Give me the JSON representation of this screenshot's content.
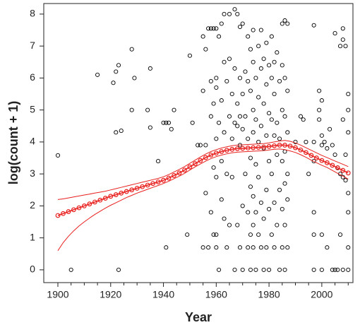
{
  "chart_data": {
    "type": "scatter",
    "x_label": "Year",
    "y_label": "log(count + 1)",
    "xlim": [
      1894.65,
      2011.8
    ],
    "ylim": [
      -0.4,
      8.33
    ],
    "xticks": [
      1900,
      1920,
      1940,
      1960,
      1980,
      2000
    ],
    "xminorticks": [
      1905,
      1910,
      1915,
      1925,
      1930,
      1935,
      1945,
      1950,
      1955,
      1965,
      1970,
      1975,
      1985,
      1990,
      1995,
      2005,
      2010
    ],
    "yticks": [
      0,
      1,
      2,
      3,
      4,
      5,
      6,
      7,
      8
    ],
    "points": {
      "color": "#000000",
      "x": [
        1900,
        1905,
        1915,
        1921,
        1922,
        1923,
        1922,
        1924,
        1923,
        1928,
        1929,
        1928,
        1935,
        1934,
        1935,
        1938,
        1940,
        1941,
        1942,
        1943,
        1944,
        1941,
        1949,
        1950,
        1951,
        1953,
        1954,
        1955,
        1955,
        1956,
        1957,
        1956,
        1956,
        1957,
        1955,
        1958,
        1958,
        1958,
        1958,
        1959,
        1959,
        1959,
        1959,
        1960,
        1960,
        1960,
        1960,
        1960,
        1960,
        1960,
        1961,
        1961,
        1961,
        1962,
        1962,
        1962,
        1962,
        1963,
        1963,
        1963,
        1963,
        1964,
        1964,
        1964,
        1965,
        1965,
        1965,
        1965,
        1966,
        1966,
        1966,
        1967,
        1967,
        1967,
        1967,
        1968,
        1968,
        1968,
        1968,
        1969,
        1969,
        1969,
        1969,
        1969,
        1970,
        1970,
        1970,
        1970,
        1970,
        1971,
        1971,
        1971,
        1972,
        1972,
        1972,
        1972,
        1972,
        1973,
        1973,
        1973,
        1973,
        1973,
        1973,
        1974,
        1974,
        1974,
        1974,
        1974,
        1974,
        1974,
        1975,
        1975,
        1975,
        1975,
        1975,
        1976,
        1976,
        1976,
        1976,
        1976,
        1977,
        1977,
        1977,
        1977,
        1977,
        1978,
        1978,
        1978,
        1978,
        1978,
        1979,
        1979,
        1979,
        1979,
        1979,
        1980,
        1980,
        1980,
        1980,
        1980,
        1981,
        1981,
        1981,
        1981,
        1981,
        1982,
        1982,
        1982,
        1982,
        1982,
        1983,
        1983,
        1983,
        1983,
        1984,
        1984,
        1984,
        1984,
        1985,
        1985,
        1985,
        1985,
        1985,
        1985,
        1986,
        1986,
        1986,
        1986,
        1986,
        1986,
        1986,
        1987,
        1987,
        1987,
        1987,
        1987,
        1987,
        1990,
        1992,
        1993,
        1994,
        1995,
        1997,
        1997,
        1997,
        1997,
        1997,
        1997,
        1999,
        1999,
        1999,
        2000,
        2000,
        2000,
        2000,
        2000,
        2001,
        2002,
        2002,
        2003,
        2004,
        2004,
        2005,
        2005,
        2005,
        2006,
        2006,
        2007,
        2007,
        2007,
        2008,
        2008,
        2008,
        2008,
        2008,
        2009,
        2009,
        2009,
        2010,
        2010,
        2010,
        2010,
        2010,
        2010,
        2010
      ],
      "y": [
        3.58,
        0,
        6.1,
        5.85,
        6.2,
        6.4,
        4.3,
        4.35,
        0,
        6.9,
        6.0,
        5.0,
        6.3,
        5.0,
        4.45,
        3.4,
        4.6,
        4.6,
        4.6,
        4.4,
        5.0,
        0.7,
        1.1,
        6.7,
        4.6,
        3.9,
        3.9,
        7.3,
        5.6,
        6.9,
        7.55,
        3.9,
        2.4,
        0.7,
        0.7,
        7.55,
        5.9,
        4.8,
        1.8,
        7.55,
        5.2,
        3.2,
        1.1,
        7.55,
        6.0,
        5.7,
        4.1,
        2.9,
        1.1,
        0.7,
        7.3,
        4.6,
        0,
        7.7,
        5.3,
        3.4,
        2.2,
        8.0,
        6.5,
        4.3,
        1.6,
        5.9,
        3.0,
        0.7,
        8.0,
        6.6,
        4.8,
        1.4,
        5.5,
        4.1,
        2.9,
        8.15,
        6.3,
        4.6,
        0,
        8.0,
        5.2,
        4.5,
        1.4,
        7.6,
        6.0,
        4.8,
        3.9,
        0.7,
        7.7,
        5.5,
        4.4,
        2.0,
        0,
        6.2,
        4.8,
        3.0,
        7.3,
        5.9,
        4.1,
        1.8,
        0.7,
        6.9,
        5.6,
        3.5,
        2.6,
        1.1,
        0,
        7.5,
        6.5,
        5.0,
        4.3,
        2.3,
        1.4,
        0.7,
        6.0,
        4.7,
        3.3,
        1.8,
        0,
        7.0,
        5.4,
        4.0,
        2.9,
        1.1,
        7.5,
        6.3,
        4.5,
        2.1,
        0.7,
        6.6,
        5.2,
        3.8,
        1.6,
        0,
        7.1,
        5.8,
        4.2,
        2.5,
        0.7,
        6.4,
        4.9,
        3.4,
        1.9,
        0,
        7.3,
        6.0,
        4.7,
        3.0,
        1.1,
        6.5,
        5.5,
        4.2,
        2.1,
        0.7,
        6.8,
        4.6,
        3.6,
        1.4,
        5.9,
        4.1,
        2.5,
        0,
        7.7,
        6.4,
        5.0,
        3.4,
        1.9,
        0.7,
        7.8,
        6.0,
        4.8,
        3.7,
        2.7,
        1.4,
        0,
        7.7,
        5.6,
        4.3,
        3.0,
        2.2,
        0.7,
        4.0,
        4.8,
        4.7,
        4.0,
        3.0,
        7.65,
        4.0,
        3.4,
        1.8,
        1.1,
        0,
        5.6,
        5.0,
        4.7,
        5.3,
        4.2,
        3.9,
        1.1,
        0,
        4.0,
        3.8,
        0.7,
        4.4,
        3.9,
        0,
        7.4,
        3.6,
        0,
        3.2,
        0,
        7.0,
        3.0,
        1.1,
        7.55,
        7.2,
        4.7,
        2.9,
        0,
        7.0,
        3.6,
        2.8,
        5.5,
        5.0,
        4.3,
        2.4,
        1.8,
        0.7,
        0
      ]
    },
    "fit": {
      "color": "#e8201e",
      "x": [
        1900,
        1902,
        1904,
        1906,
        1908,
        1910,
        1912,
        1914,
        1916,
        1918,
        1920,
        1922,
        1924,
        1926,
        1928,
        1930,
        1932,
        1934,
        1936,
        1938,
        1940,
        1942,
        1944,
        1946,
        1948,
        1950,
        1952,
        1954,
        1956,
        1958,
        1960,
        1962,
        1964,
        1966,
        1968,
        1970,
        1972,
        1974,
        1976,
        1978,
        1980,
        1982,
        1984,
        1986,
        1988,
        1990,
        1992,
        1994,
        1996,
        1998,
        2000,
        2002,
        2004,
        2006,
        2008,
        2010
      ],
      "y": [
        1.7,
        1.76,
        1.82,
        1.88,
        1.94,
        2.0,
        2.06,
        2.12,
        2.18,
        2.24,
        2.3,
        2.35,
        2.4,
        2.45,
        2.5,
        2.55,
        2.6,
        2.65,
        2.7,
        2.75,
        2.8,
        2.87,
        2.95,
        3.03,
        3.12,
        3.22,
        3.32,
        3.42,
        3.51,
        3.59,
        3.65,
        3.7,
        3.74,
        3.77,
        3.79,
        3.8,
        3.81,
        3.82,
        3.83,
        3.84,
        3.86,
        3.88,
        3.9,
        3.9,
        3.87,
        3.82,
        3.75,
        3.67,
        3.58,
        3.5,
        3.42,
        3.35,
        3.27,
        3.19,
        3.11,
        3.03
      ],
      "upper": [
        2.2,
        2.22,
        2.25,
        2.28,
        2.31,
        2.34,
        2.37,
        2.4,
        2.43,
        2.46,
        2.5,
        2.54,
        2.58,
        2.62,
        2.66,
        2.7,
        2.74,
        2.78,
        2.82,
        2.86,
        2.91,
        2.98,
        3.06,
        3.14,
        3.23,
        3.33,
        3.43,
        3.53,
        3.62,
        3.7,
        3.76,
        3.81,
        3.85,
        3.88,
        3.9,
        3.91,
        3.92,
        3.93,
        3.94,
        3.95,
        3.97,
        4.0,
        4.03,
        4.05,
        4.02,
        3.97,
        3.9,
        3.82,
        3.74,
        3.66,
        3.58,
        3.51,
        3.44,
        3.37,
        3.3,
        3.23
      ],
      "lower": [
        0.6,
        0.85,
        1.05,
        1.22,
        1.37,
        1.5,
        1.62,
        1.73,
        1.83,
        1.93,
        2.02,
        2.1,
        2.18,
        2.26,
        2.33,
        2.4,
        2.46,
        2.52,
        2.58,
        2.64,
        2.7,
        2.77,
        2.85,
        2.93,
        3.02,
        3.12,
        3.22,
        3.31,
        3.4,
        3.48,
        3.54,
        3.59,
        3.63,
        3.66,
        3.68,
        3.69,
        3.7,
        3.71,
        3.72,
        3.73,
        3.75,
        3.77,
        3.78,
        3.76,
        3.72,
        3.67,
        3.6,
        3.52,
        3.43,
        3.35,
        3.27,
        3.2,
        3.11,
        3.02,
        2.93,
        2.84
      ]
    }
  }
}
